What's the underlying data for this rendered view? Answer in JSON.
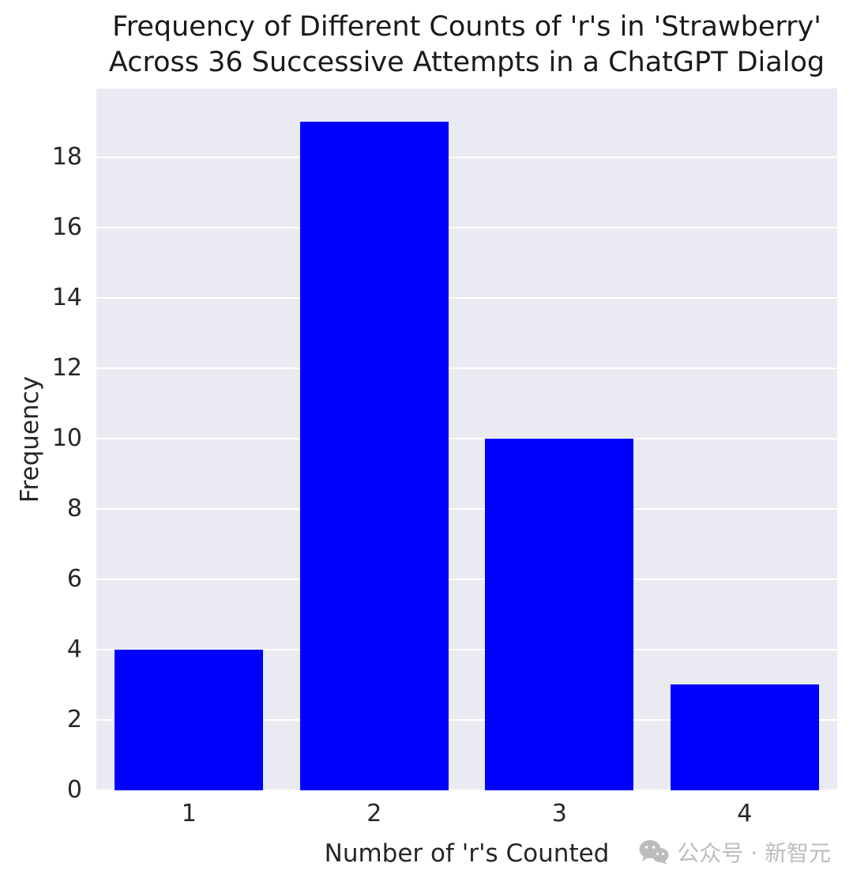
{
  "title": {
    "line1": "Frequency of Different Counts of 'r's in 'Strawberry'",
    "line2": "Across 36 Successive Attempts in a ChatGPT Dialog"
  },
  "chart_data": {
    "type": "bar",
    "categories": [
      "1",
      "2",
      "3",
      "4"
    ],
    "values": [
      4,
      19,
      10,
      3
    ],
    "title": "Frequency of Different Counts of 'r's in 'Strawberry' Across 36 Successive Attempts in a ChatGPT Dialog",
    "xlabel": "Number of 'r's Counted",
    "ylabel": "Frequency",
    "ylim": [
      0,
      19.95
    ],
    "yticks": [
      0,
      2,
      4,
      6,
      8,
      10,
      12,
      14,
      16,
      18
    ],
    "bar_color": "#0000ff",
    "plot_bg": "#eaeaf2",
    "grid_color": "#ffffff",
    "grid": true,
    "legend": "none",
    "total_attempts": 36
  },
  "watermark": {
    "text": "公众号 · 新智元"
  }
}
